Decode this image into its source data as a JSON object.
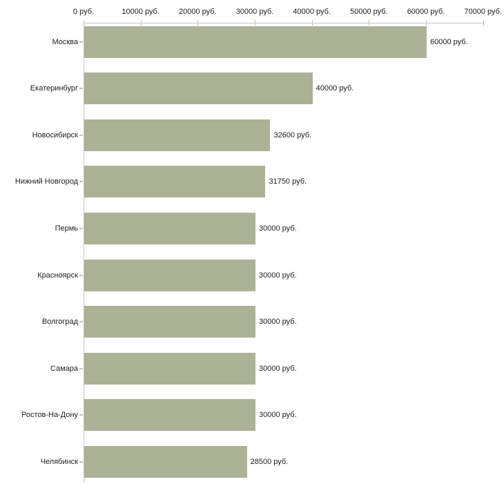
{
  "chart_data": {
    "type": "bar",
    "orientation": "horizontal",
    "title": "",
    "xlabel": "",
    "ylabel": "",
    "unit_suffix": " руб.",
    "xlim": [
      0,
      70000
    ],
    "grid": false,
    "legend": "none",
    "categories": [
      "Москва",
      "Екатеринбург",
      "Новосибирск",
      "Нижний Новгород",
      "Пермь",
      "Красноярск",
      "Волгоград",
      "Самара",
      "Ростов-На-Дону",
      "Челябинск"
    ],
    "values": [
      60000,
      40000,
      32600,
      31750,
      30000,
      30000,
      30000,
      30000,
      30000,
      28500
    ],
    "value_labels": [
      "60000 руб.",
      "40000 руб.",
      "32600 руб.",
      "31750 руб.",
      "30000 руб.",
      "30000 руб.",
      "30000 руб.",
      "30000 руб.",
      "30000 руб.",
      "28500 руб."
    ],
    "x_ticks": [
      {
        "value": 0,
        "label": "0 руб."
      },
      {
        "value": 10000,
        "label": "10000 руб."
      },
      {
        "value": 20000,
        "label": "20000 руб."
      },
      {
        "value": 30000,
        "label": "30000 руб."
      },
      {
        "value": 40000,
        "label": "40000 руб."
      },
      {
        "value": 50000,
        "label": "50000 руб."
      },
      {
        "value": 60000,
        "label": "60000 руб."
      },
      {
        "value": 70000,
        "label": "70000 руб."
      }
    ],
    "colors": {
      "bar": "#acb296",
      "axis": "#c5c5c5",
      "tick": "#c9c198",
      "text": "#1c1c1c",
      "background": "#ffffff"
    }
  }
}
